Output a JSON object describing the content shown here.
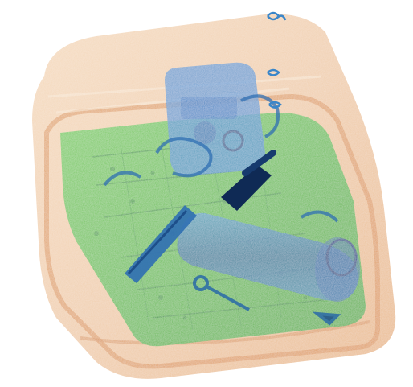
{
  "image": {
    "kind": "x-ray baggage scan",
    "background": "#ffffff",
    "colors": {
      "organic_shell": "#e9b07a",
      "organic_shell_edge": "#d9893f",
      "mixed_board": "#5fc24f",
      "mixed_board_dark": "#2f8f3a",
      "dense_item": "#3a86c9",
      "dense_item_dark": "#1d4f8a",
      "very_dense": "#0f2a55",
      "dense_lid": "#4e95d6"
    },
    "objects": [
      {
        "name": "suitcase-shell"
      },
      {
        "name": "circuit-board-plate"
      },
      {
        "name": "handheld-device"
      },
      {
        "name": "elongated-tool"
      },
      {
        "name": "dense-core-block"
      },
      {
        "name": "cylindrical-container"
      },
      {
        "name": "small-wrench"
      },
      {
        "name": "zipper-pulls"
      },
      {
        "name": "cable-loops"
      }
    ]
  }
}
